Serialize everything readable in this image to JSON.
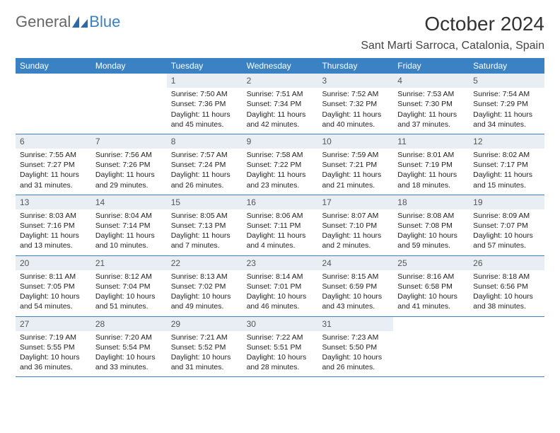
{
  "logo": {
    "text1": "General",
    "text2": "Blue"
  },
  "title": "October 2024",
  "location": "Sant Marti Sarroca, Catalonia, Spain",
  "colors": {
    "header_bg": "#3b82c4",
    "header_text": "#ffffff",
    "daynum_bg": "#e8eef3",
    "row_border": "#3b82c4",
    "logo_blue": "#3b7fc4",
    "body_text": "#333333"
  },
  "weekdays": [
    "Sunday",
    "Monday",
    "Tuesday",
    "Wednesday",
    "Thursday",
    "Friday",
    "Saturday"
  ],
  "weeks": [
    [
      {
        "empty": true
      },
      {
        "empty": true
      },
      {
        "num": "1",
        "sunrise": "Sunrise: 7:50 AM",
        "sunset": "Sunset: 7:36 PM",
        "daylight": "Daylight: 11 hours and 45 minutes."
      },
      {
        "num": "2",
        "sunrise": "Sunrise: 7:51 AM",
        "sunset": "Sunset: 7:34 PM",
        "daylight": "Daylight: 11 hours and 42 minutes."
      },
      {
        "num": "3",
        "sunrise": "Sunrise: 7:52 AM",
        "sunset": "Sunset: 7:32 PM",
        "daylight": "Daylight: 11 hours and 40 minutes."
      },
      {
        "num": "4",
        "sunrise": "Sunrise: 7:53 AM",
        "sunset": "Sunset: 7:30 PM",
        "daylight": "Daylight: 11 hours and 37 minutes."
      },
      {
        "num": "5",
        "sunrise": "Sunrise: 7:54 AM",
        "sunset": "Sunset: 7:29 PM",
        "daylight": "Daylight: 11 hours and 34 minutes."
      }
    ],
    [
      {
        "num": "6",
        "sunrise": "Sunrise: 7:55 AM",
        "sunset": "Sunset: 7:27 PM",
        "daylight": "Daylight: 11 hours and 31 minutes."
      },
      {
        "num": "7",
        "sunrise": "Sunrise: 7:56 AM",
        "sunset": "Sunset: 7:26 PM",
        "daylight": "Daylight: 11 hours and 29 minutes."
      },
      {
        "num": "8",
        "sunrise": "Sunrise: 7:57 AM",
        "sunset": "Sunset: 7:24 PM",
        "daylight": "Daylight: 11 hours and 26 minutes."
      },
      {
        "num": "9",
        "sunrise": "Sunrise: 7:58 AM",
        "sunset": "Sunset: 7:22 PM",
        "daylight": "Daylight: 11 hours and 23 minutes."
      },
      {
        "num": "10",
        "sunrise": "Sunrise: 7:59 AM",
        "sunset": "Sunset: 7:21 PM",
        "daylight": "Daylight: 11 hours and 21 minutes."
      },
      {
        "num": "11",
        "sunrise": "Sunrise: 8:01 AM",
        "sunset": "Sunset: 7:19 PM",
        "daylight": "Daylight: 11 hours and 18 minutes."
      },
      {
        "num": "12",
        "sunrise": "Sunrise: 8:02 AM",
        "sunset": "Sunset: 7:17 PM",
        "daylight": "Daylight: 11 hours and 15 minutes."
      }
    ],
    [
      {
        "num": "13",
        "sunrise": "Sunrise: 8:03 AM",
        "sunset": "Sunset: 7:16 PM",
        "daylight": "Daylight: 11 hours and 13 minutes."
      },
      {
        "num": "14",
        "sunrise": "Sunrise: 8:04 AM",
        "sunset": "Sunset: 7:14 PM",
        "daylight": "Daylight: 11 hours and 10 minutes."
      },
      {
        "num": "15",
        "sunrise": "Sunrise: 8:05 AM",
        "sunset": "Sunset: 7:13 PM",
        "daylight": "Daylight: 11 hours and 7 minutes."
      },
      {
        "num": "16",
        "sunrise": "Sunrise: 8:06 AM",
        "sunset": "Sunset: 7:11 PM",
        "daylight": "Daylight: 11 hours and 4 minutes."
      },
      {
        "num": "17",
        "sunrise": "Sunrise: 8:07 AM",
        "sunset": "Sunset: 7:10 PM",
        "daylight": "Daylight: 11 hours and 2 minutes."
      },
      {
        "num": "18",
        "sunrise": "Sunrise: 8:08 AM",
        "sunset": "Sunset: 7:08 PM",
        "daylight": "Daylight: 10 hours and 59 minutes."
      },
      {
        "num": "19",
        "sunrise": "Sunrise: 8:09 AM",
        "sunset": "Sunset: 7:07 PM",
        "daylight": "Daylight: 10 hours and 57 minutes."
      }
    ],
    [
      {
        "num": "20",
        "sunrise": "Sunrise: 8:11 AM",
        "sunset": "Sunset: 7:05 PM",
        "daylight": "Daylight: 10 hours and 54 minutes."
      },
      {
        "num": "21",
        "sunrise": "Sunrise: 8:12 AM",
        "sunset": "Sunset: 7:04 PM",
        "daylight": "Daylight: 10 hours and 51 minutes."
      },
      {
        "num": "22",
        "sunrise": "Sunrise: 8:13 AM",
        "sunset": "Sunset: 7:02 PM",
        "daylight": "Daylight: 10 hours and 49 minutes."
      },
      {
        "num": "23",
        "sunrise": "Sunrise: 8:14 AM",
        "sunset": "Sunset: 7:01 PM",
        "daylight": "Daylight: 10 hours and 46 minutes."
      },
      {
        "num": "24",
        "sunrise": "Sunrise: 8:15 AM",
        "sunset": "Sunset: 6:59 PM",
        "daylight": "Daylight: 10 hours and 43 minutes."
      },
      {
        "num": "25",
        "sunrise": "Sunrise: 8:16 AM",
        "sunset": "Sunset: 6:58 PM",
        "daylight": "Daylight: 10 hours and 41 minutes."
      },
      {
        "num": "26",
        "sunrise": "Sunrise: 8:18 AM",
        "sunset": "Sunset: 6:56 PM",
        "daylight": "Daylight: 10 hours and 38 minutes."
      }
    ],
    [
      {
        "num": "27",
        "sunrise": "Sunrise: 7:19 AM",
        "sunset": "Sunset: 5:55 PM",
        "daylight": "Daylight: 10 hours and 36 minutes."
      },
      {
        "num": "28",
        "sunrise": "Sunrise: 7:20 AM",
        "sunset": "Sunset: 5:54 PM",
        "daylight": "Daylight: 10 hours and 33 minutes."
      },
      {
        "num": "29",
        "sunrise": "Sunrise: 7:21 AM",
        "sunset": "Sunset: 5:52 PM",
        "daylight": "Daylight: 10 hours and 31 minutes."
      },
      {
        "num": "30",
        "sunrise": "Sunrise: 7:22 AM",
        "sunset": "Sunset: 5:51 PM",
        "daylight": "Daylight: 10 hours and 28 minutes."
      },
      {
        "num": "31",
        "sunrise": "Sunrise: 7:23 AM",
        "sunset": "Sunset: 5:50 PM",
        "daylight": "Daylight: 10 hours and 26 minutes."
      },
      {
        "empty": true
      },
      {
        "empty": true
      }
    ]
  ]
}
